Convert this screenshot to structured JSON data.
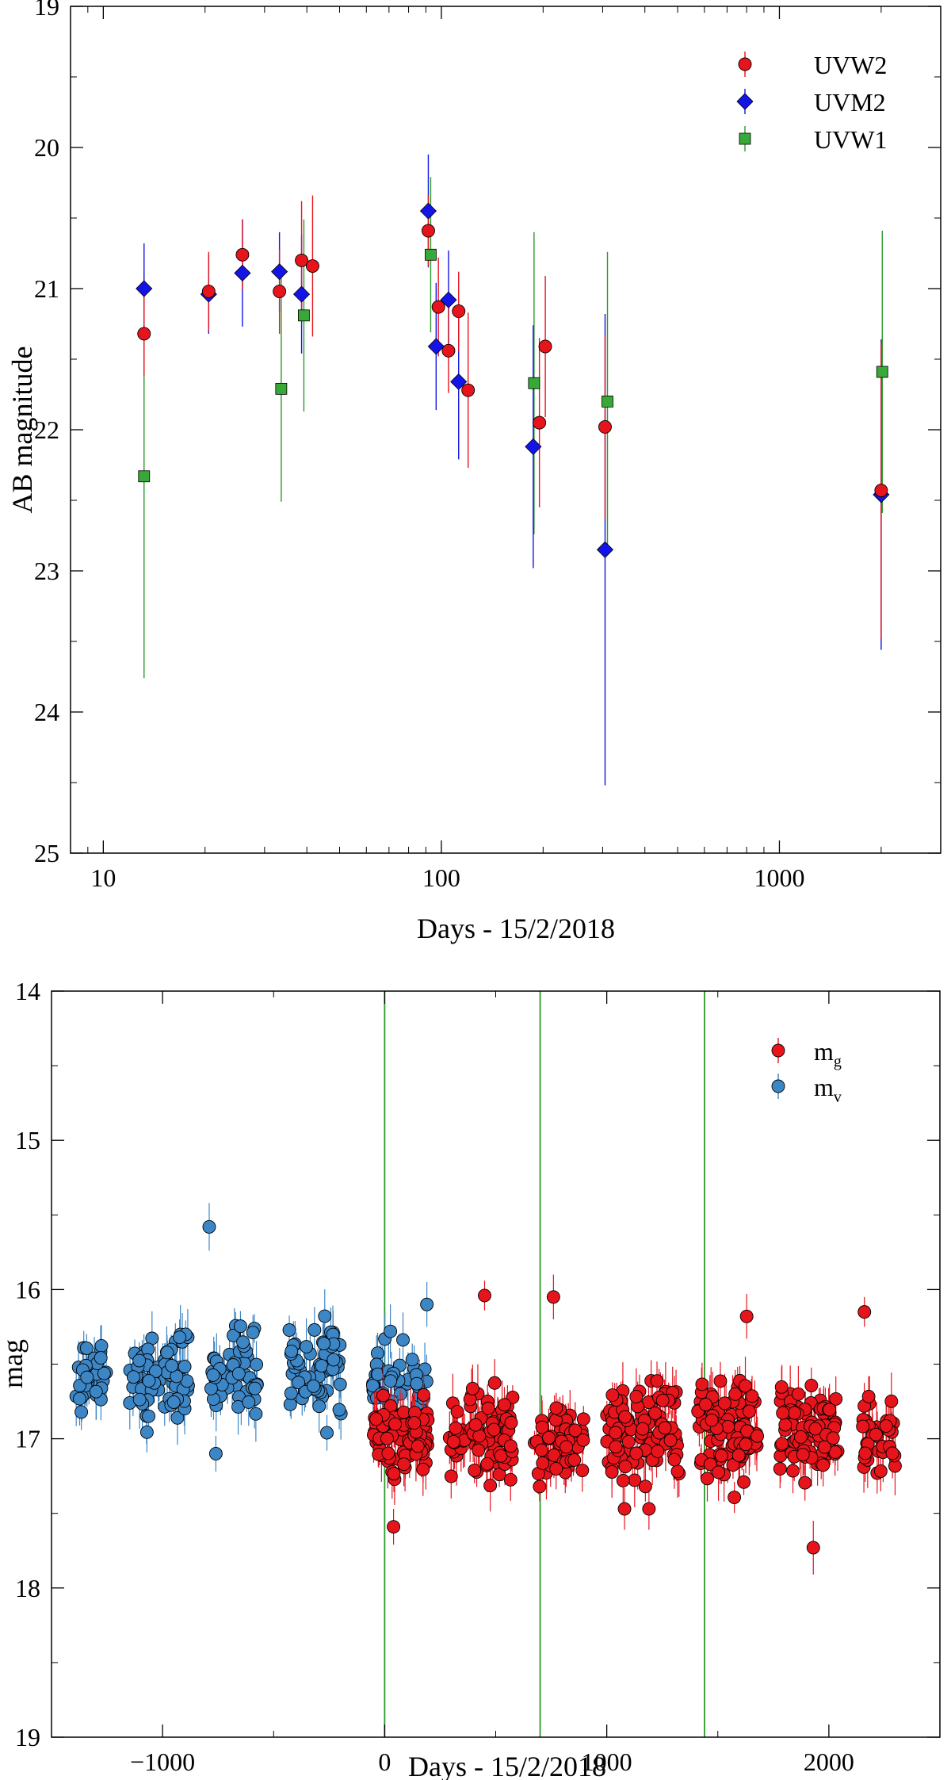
{
  "chart_data": [
    {
      "type": "scatter",
      "title": "",
      "xlabel": "Days - 15/2/2018",
      "ylabel": "AB magnitude",
      "xscale": "log",
      "xlim": [
        8,
        3000
      ],
      "ylim": [
        19,
        25
      ],
      "y_inverted": true,
      "x_ticks": [
        "10",
        "100",
        "1000"
      ],
      "y_ticks": [
        "19",
        "20",
        "21",
        "22",
        "23",
        "24",
        "25"
      ],
      "legend_position": "top-right",
      "series": [
        {
          "name": "UVW2",
          "marker": "circle",
          "color": "#e8141c",
          "err_color": "#e8141c",
          "points": [
            {
              "x": 13.2,
              "y": 21.32,
              "e": 0.3
            },
            {
              "x": 20.5,
              "y": 21.02,
              "e": 0.28
            },
            {
              "x": 25.8,
              "y": 20.76,
              "e": 0.25
            },
            {
              "x": 33.2,
              "y": 21.02,
              "e": 0.3
            },
            {
              "x": 38.6,
              "y": 20.8,
              "e": 0.42
            },
            {
              "x": 41.6,
              "y": 20.84,
              "e": 0.5
            },
            {
              "x": 91.5,
              "y": 20.59,
              "e": 0.25
            },
            {
              "x": 98.0,
              "y": 21.13,
              "e": 0.35
            },
            {
              "x": 105.0,
              "y": 21.44,
              "e": 0.3
            },
            {
              "x": 112.5,
              "y": 21.16,
              "e": 0.28
            },
            {
              "x": 120.0,
              "y": 21.72,
              "e": 0.55
            },
            {
              "x": 195.0,
              "y": 21.95,
              "e": 0.6
            },
            {
              "x": 203.0,
              "y": 21.41,
              "e": 0.5
            },
            {
              "x": 305.0,
              "y": 21.98,
              "e": 0.65
            },
            {
              "x": 2000.0,
              "y": 22.43,
              "e": 1.05
            }
          ]
        },
        {
          "name": "UVM2",
          "marker": "diamond",
          "color": "#1414e6",
          "err_color": "#1414e6",
          "points": [
            {
              "x": 13.2,
              "y": 21.0,
              "e": 0.32
            },
            {
              "x": 20.5,
              "y": 21.04,
              "e": 0.28
            },
            {
              "x": 25.8,
              "y": 20.89,
              "e": 0.38
            },
            {
              "x": 33.2,
              "y": 20.88,
              "e": 0.28
            },
            {
              "x": 38.6,
              "y": 21.04,
              "e": 0.42
            },
            {
              "x": 91.5,
              "y": 20.45,
              "e": 0.4
            },
            {
              "x": 96.5,
              "y": 21.41,
              "e": 0.45
            },
            {
              "x": 105.0,
              "y": 21.08,
              "e": 0.35
            },
            {
              "x": 112.5,
              "y": 21.66,
              "e": 0.55
            },
            {
              "x": 187.0,
              "y": 22.12,
              "e": 0.86
            },
            {
              "x": 305.0,
              "y": 22.85,
              "e": 1.67
            },
            {
              "x": 2000.0,
              "y": 22.46,
              "e": 1.1
            }
          ]
        },
        {
          "name": "UVW1",
          "marker": "square",
          "color": "#38a838",
          "err_color": "#2a9a2a",
          "points": [
            {
              "x": 13.2,
              "y": 22.33,
              "e": 1.43
            },
            {
              "x": 33.6,
              "y": 21.71,
              "e": 0.8
            },
            {
              "x": 39.2,
              "y": 21.19,
              "e": 0.68
            },
            {
              "x": 93.0,
              "y": 20.76,
              "e": 0.55
            },
            {
              "x": 188.0,
              "y": 21.67,
              "e": 1.07
            },
            {
              "x": 310.0,
              "y": 21.8,
              "e": 1.06
            },
            {
              "x": 2015.0,
              "y": 21.59,
              "e": 1.0
            }
          ]
        }
      ]
    },
    {
      "type": "scatter",
      "title": "",
      "xlabel": "Days - 15/2/2018",
      "ylabel": "mag",
      "xlim": [
        -1500,
        2500
      ],
      "ylim": [
        14,
        19
      ],
      "y_inverted": true,
      "x_ticks": [
        "−1000",
        "0",
        "1000",
        "2000"
      ],
      "y_ticks": [
        "14",
        "15",
        "16",
        "17",
        "18",
        "19"
      ],
      "vertical_lines": [
        0,
        700,
        1440
      ],
      "legend_position": "top-right",
      "series": [
        {
          "name": "m",
          "name_subscript": "g",
          "marker": "circle",
          "color": "#e8141c",
          "err_color": "#e8141c"
        },
        {
          "name": "m",
          "name_subscript": "v",
          "marker": "circle",
          "color": "#3d86c6",
          "err_color": "#3d86c6"
        }
      ],
      "scatter_clusters": [
        {
          "series": "m_v",
          "x_range": [
            -1390,
            -1250
          ],
          "y_center": 16.58,
          "y_spread": 0.16,
          "count": 30
        },
        {
          "series": "m_v",
          "x_range": [
            -1150,
            -880
          ],
          "y_center": 16.58,
          "y_spread": 0.2,
          "count": 70
        },
        {
          "series": "m_v",
          "x_range": [
            -790,
            -560
          ],
          "y_center": 16.58,
          "y_spread": 0.2,
          "count": 50
        },
        {
          "series": "m_v",
          "x_range": [
            -430,
            -190
          ],
          "y_center": 16.52,
          "y_spread": 0.2,
          "count": 60
        },
        {
          "series": "m_v",
          "x_range": [
            -60,
            0
          ],
          "y_center": 16.62,
          "y_spread": 0.16,
          "count": 20
        },
        {
          "series": "m_v",
          "x_range": [
            0,
            190
          ],
          "y_center": 16.62,
          "y_spread": 0.18,
          "count": 30
        },
        {
          "series": "m_g",
          "x_range": [
            -50,
            200
          ],
          "y_center": 17.0,
          "y_spread": 0.17,
          "count": 90
        },
        {
          "series": "m_g",
          "x_range": [
            290,
            580
          ],
          "y_center": 16.95,
          "y_spread": 0.2,
          "count": 90
        },
        {
          "series": "m_g",
          "x_range": [
            670,
            900
          ],
          "y_center": 17.02,
          "y_spread": 0.18,
          "count": 60
        },
        {
          "series": "m_g",
          "x_range": [
            1000,
            1330
          ],
          "y_center": 16.95,
          "y_spread": 0.2,
          "count": 100
        },
        {
          "series": "m_g",
          "x_range": [
            1410,
            1680
          ],
          "y_center": 16.95,
          "y_spread": 0.2,
          "count": 90
        },
        {
          "series": "m_g",
          "x_range": [
            1780,
            2040
          ],
          "y_center": 16.95,
          "y_spread": 0.2,
          "count": 90
        },
        {
          "series": "m_g",
          "x_range": [
            2150,
            2300
          ],
          "y_center": 16.98,
          "y_spread": 0.18,
          "count": 35
        }
      ],
      "highlight_points": [
        {
          "series": "m_v",
          "x": -790,
          "y": 15.58,
          "e": 0.16
        },
        {
          "series": "m_v",
          "x": -760,
          "y": 17.1,
          "e": 0.12
        },
        {
          "series": "m_v",
          "x": -260,
          "y": 16.96,
          "e": 0.12
        },
        {
          "series": "m_v",
          "x": 190,
          "y": 16.1,
          "e": 0.15
        },
        {
          "series": "m_g",
          "x": 450,
          "y": 16.04,
          "e": 0.1
        },
        {
          "series": "m_g",
          "x": 760,
          "y": 16.05,
          "e": 0.15
        },
        {
          "series": "m_g",
          "x": 1630,
          "y": 16.18,
          "e": 0.15
        },
        {
          "series": "m_g",
          "x": 2160,
          "y": 16.15,
          "e": 0.1
        },
        {
          "series": "m_g",
          "x": 1930,
          "y": 17.73,
          "e": 0.18
        },
        {
          "series": "m_g",
          "x": 40,
          "y": 17.59,
          "e": 0.12
        },
        {
          "series": "m_g",
          "x": 1080,
          "y": 17.47,
          "e": 0.14
        },
        {
          "series": "m_g",
          "x": 1190,
          "y": 17.47,
          "e": 0.14
        }
      ]
    }
  ]
}
